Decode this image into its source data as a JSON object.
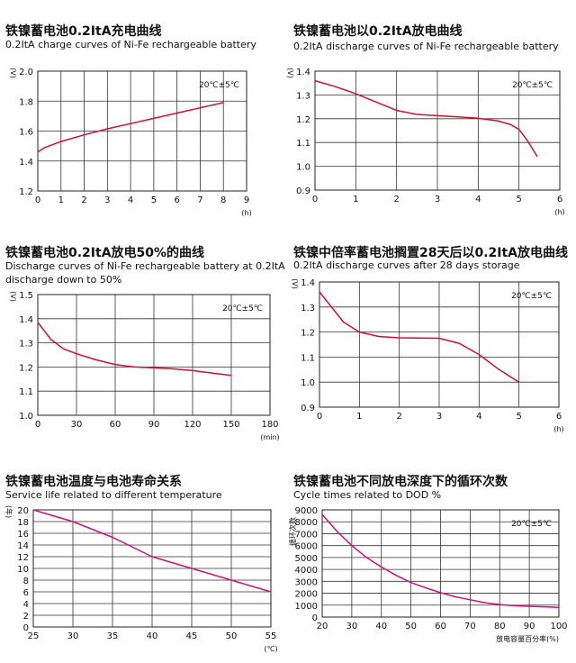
{
  "chart_data": [
    {
      "type": "line",
      "title_zh": "铁镍蓄电池0.2ItA充电曲线",
      "title_en": "0.2ItA charge curves of Ni-Fe rechargeable battery",
      "ylabel": "(V)",
      "xlabel": "(h)",
      "condition": "20℃±5℃",
      "xlim": [
        0,
        9
      ],
      "ylim": [
        1.2,
        2.0
      ],
      "xticks": [
        "0",
        "1",
        "2",
        "3",
        "4",
        "5",
        "6",
        "7",
        "8",
        "9"
      ],
      "yticks": [
        "1.2",
        "1.4",
        "1.6",
        "1.8",
        "2.0"
      ],
      "color": "#cc1133",
      "series": [
        {
          "name": "charge",
          "x": [
            0,
            0.3,
            1,
            2,
            3,
            4,
            5,
            6,
            7,
            8
          ],
          "y": [
            1.46,
            1.49,
            1.53,
            1.575,
            1.615,
            1.65,
            1.685,
            1.72,
            1.755,
            1.79
          ]
        }
      ]
    },
    {
      "type": "line",
      "title_zh": "铁镍蓄电池以0.2ItA放电曲线",
      "title_en": "0.2ItA discharge curves of Ni-Fe rechargeable battery",
      "ylabel": "(V)",
      "xlabel": "(h)",
      "condition": "20℃±5℃",
      "xlim": [
        0,
        6
      ],
      "ylim": [
        0.9,
        1.4
      ],
      "xticks": [
        "0",
        "1",
        "2",
        "3",
        "4",
        "5",
        "6"
      ],
      "yticks": [
        "0.9",
        "1.0",
        "1.1",
        "1.2",
        "1.3",
        "1.4"
      ],
      "color": "#cc1133",
      "series": [
        {
          "name": "discharge",
          "x": [
            0,
            0.5,
            1,
            1.5,
            2,
            2.5,
            3,
            3.5,
            4,
            4.5,
            4.8,
            5.0,
            5.2,
            5.45
          ],
          "y": [
            1.36,
            1.335,
            1.305,
            1.27,
            1.235,
            1.218,
            1.213,
            1.208,
            1.202,
            1.19,
            1.175,
            1.155,
            1.11,
            1.04
          ]
        }
      ]
    },
    {
      "type": "line",
      "title_zh": "铁镍蓄电池0.2ItA放电50%的曲线",
      "title_en": "Discharge curves of Ni-Fe rechargeable battery at 0.2ItA",
      "title_en2": "discharge down to 50%",
      "ylabel": "(V)",
      "xlabel": "(min)",
      "condition": "20℃±5℃",
      "xlim": [
        0,
        180
      ],
      "ylim": [
        1.0,
        1.5
      ],
      "xticks": [
        "0",
        "30",
        "60",
        "90",
        "120",
        "150",
        "180"
      ],
      "yticks": [
        "1.0",
        "1.1",
        "1.2",
        "1.3",
        "1.4",
        "1.5"
      ],
      "color": "#cc1133",
      "series": [
        {
          "name": "discharge 50%",
          "x": [
            0,
            10,
            20,
            30,
            45,
            60,
            75,
            90,
            105,
            120,
            135,
            150
          ],
          "y": [
            1.385,
            1.315,
            1.275,
            1.255,
            1.23,
            1.21,
            1.2,
            1.197,
            1.192,
            1.185,
            1.175,
            1.165
          ]
        }
      ]
    },
    {
      "type": "line",
      "title_zh": "铁镍中倍率蓄电池搁置28天后以0.2ItA放电曲线",
      "title_en": "0.2ItA discharge curves after 28 days storage",
      "ylabel": "(V)",
      "xlabel": "(h)",
      "condition": "20℃±5℃",
      "xlim": [
        0,
        6
      ],
      "ylim": [
        0.9,
        1.4
      ],
      "xticks": [
        "0",
        "1",
        "2",
        "3",
        "4",
        "5",
        "6"
      ],
      "yticks": [
        "0.9",
        "1.0",
        "1.1",
        "1.2",
        "1.3",
        "1.4"
      ],
      "color": "#cc1133",
      "series": [
        {
          "name": "after 28 days",
          "x": [
            0,
            0.3,
            0.6,
            1,
            1.5,
            2,
            2.5,
            3,
            3.5,
            4,
            4.5,
            5
          ],
          "y": [
            1.36,
            1.3,
            1.24,
            1.2,
            1.182,
            1.177,
            1.176,
            1.175,
            1.155,
            1.11,
            1.05,
            1.0
          ]
        }
      ]
    },
    {
      "type": "line",
      "title_zh": "铁镍蓄电池温度与电池寿命关系",
      "title_en": "Service life related to different temperature",
      "ylabel": "(年)",
      "xlabel": "(℃)",
      "condition": "",
      "xlim": [
        25,
        55
      ],
      "ylim": [
        0,
        20
      ],
      "xticks": [
        "25",
        "30",
        "35",
        "40",
        "45",
        "50",
        "55"
      ],
      "yticks": [
        "0",
        "2",
        "4",
        "6",
        "8",
        "10",
        "12",
        "14",
        "16",
        "18",
        "20"
      ],
      "color": "#cc1177",
      "series": [
        {
          "name": "service life",
          "x": [
            25,
            30,
            35,
            40,
            45,
            50,
            55
          ],
          "y": [
            20,
            18,
            15.3,
            12,
            10,
            8,
            6
          ]
        }
      ]
    },
    {
      "type": "line",
      "title_zh": "铁镍蓄电池不同放电深度下的循环次数",
      "title_en": "Cycle times related to DOD %",
      "ylabel": "循环次数",
      "xlabel": "放电容量百分率(%)",
      "condition": "20℃±5℃",
      "xlim": [
        20,
        100
      ],
      "ylim": [
        0,
        9000
      ],
      "xticks": [
        "20",
        "30",
        "40",
        "50",
        "60",
        "70",
        "80",
        "90",
        "100"
      ],
      "yticks": [
        "0",
        "1000",
        "2000",
        "3000",
        "4000",
        "5000",
        "6000",
        "7000",
        "8000",
        "9000"
      ],
      "color": "#cc1177",
      "series": [
        {
          "name": "cycle times",
          "x": [
            20,
            25,
            30,
            35,
            40,
            45,
            50,
            55,
            60,
            65,
            70,
            75,
            80,
            85,
            90,
            95,
            100
          ],
          "y": [
            8600,
            7200,
            6000,
            5000,
            4200,
            3500,
            2900,
            2450,
            2050,
            1700,
            1450,
            1200,
            1050,
            950,
            900,
            860,
            820
          ]
        }
      ]
    }
  ]
}
